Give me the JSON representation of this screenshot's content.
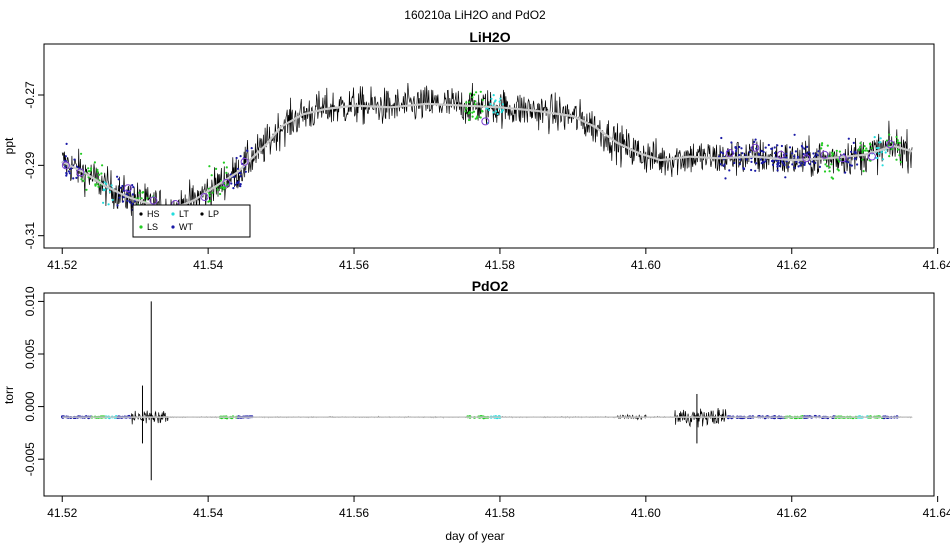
{
  "figure": {
    "title": "160210a   LiH2O and PdO2",
    "xlabel": "day of year"
  },
  "colors": {
    "HS": "#000000",
    "LS": "#22cc22",
    "LT": "#22dddd",
    "WT": "#1a1aa6",
    "LP": "#000000",
    "smooth": "#c8c8c8",
    "marker": "#7b3fd1"
  },
  "chart_data": [
    {
      "type": "line",
      "title": "LiH2O",
      "xlabel": "",
      "ylabel": "ppt",
      "xlim": [
        41.5175,
        41.6395
      ],
      "ylim": [
        -0.3135,
        -0.2555
      ],
      "xticks": [
        41.52,
        41.54,
        41.56,
        41.58,
        41.6,
        41.62,
        41.64
      ],
      "xtick_labels": [
        "41.52",
        "41.54",
        "41.56",
        "41.58",
        "41.60",
        "41.62",
        "41.64"
      ],
      "yticks": [
        -0.31,
        -0.29,
        -0.27
      ],
      "ytick_labels": [
        "-0.31",
        "-0.29",
        "-0.27"
      ],
      "grid": false,
      "legend": {
        "placement": "bottom-left",
        "entries": [
          {
            "label": "HS",
            "color": "#000000"
          },
          {
            "label": "LS",
            "color": "#22cc22"
          },
          {
            "label": "LT",
            "color": "#22dddd"
          },
          {
            "label": "WT",
            "color": "#1a1aa6"
          },
          {
            "label": "LP",
            "color": "#000000"
          }
        ]
      },
      "series": [
        {
          "name": "HS",
          "x": [
            41.52,
            41.523,
            41.526,
            41.529,
            41.532,
            41.535,
            41.538,
            41.541,
            41.544,
            41.546,
            41.548,
            41.55,
            41.553,
            41.556,
            41.56,
            41.565,
            41.57,
            41.575,
            41.58,
            41.585,
            41.59,
            41.593,
            41.596,
            41.599,
            41.602,
            41.606,
            41.61,
            41.615,
            41.62,
            41.625,
            41.63,
            41.634,
            41.6365
          ],
          "values": [
            -0.289,
            -0.292,
            -0.296,
            -0.299,
            -0.301,
            -0.3025,
            -0.3,
            -0.296,
            -0.292,
            -0.288,
            -0.284,
            -0.279,
            -0.2755,
            -0.274,
            -0.273,
            -0.2735,
            -0.2725,
            -0.273,
            -0.2735,
            -0.2745,
            -0.276,
            -0.279,
            -0.2835,
            -0.2865,
            -0.2885,
            -0.2875,
            -0.288,
            -0.2875,
            -0.2885,
            -0.288,
            -0.287,
            -0.2845,
            -0.286
          ],
          "noise": 0.009
        },
        {
          "name": "smoothed",
          "x": [
            41.52,
            41.523,
            41.526,
            41.529,
            41.532,
            41.535,
            41.538,
            41.541,
            41.544,
            41.546,
            41.548,
            41.55,
            41.553,
            41.556,
            41.56,
            41.565,
            41.57,
            41.575,
            41.58,
            41.585,
            41.59,
            41.593,
            41.596,
            41.599,
            41.602,
            41.606,
            41.61,
            41.615,
            41.62,
            41.625,
            41.63,
            41.634,
            41.6365
          ],
          "values": [
            -0.289,
            -0.292,
            -0.296,
            -0.299,
            -0.301,
            -0.3025,
            -0.3,
            -0.296,
            -0.292,
            -0.288,
            -0.284,
            -0.279,
            -0.2755,
            -0.274,
            -0.273,
            -0.2735,
            -0.2725,
            -0.273,
            -0.2735,
            -0.2745,
            -0.276,
            -0.279,
            -0.2835,
            -0.2865,
            -0.2885,
            -0.2875,
            -0.288,
            -0.2875,
            -0.2885,
            -0.288,
            -0.287,
            -0.2845,
            -0.286
          ]
        },
        {
          "name": "markers",
          "x": [
            41.5205,
            41.5225,
            41.529,
            41.5325,
            41.5355,
            41.5395,
            41.5425,
            41.545,
            41.578,
            41.6115,
            41.615,
            41.6185,
            41.622,
            41.6245,
            41.627,
            41.631,
            41.6335
          ],
          "values": [
            -0.29,
            -0.292,
            -0.2965,
            -0.3,
            -0.301,
            -0.299,
            -0.295,
            -0.289,
            -0.2775,
            -0.2865,
            -0.285,
            -0.287,
            -0.288,
            -0.287,
            -0.288,
            -0.2875,
            -0.284
          ]
        }
      ],
      "segments": [
        {
          "label": "WT",
          "x0": 41.52,
          "x1": 41.5225,
          "color": "#1a1aa6"
        },
        {
          "label": "LS",
          "x0": 41.5225,
          "x1": 41.5255,
          "color": "#22cc22"
        },
        {
          "label": "LT",
          "x0": 41.5255,
          "x1": 41.527,
          "color": "#22dddd"
        },
        {
          "label": "WT",
          "x0": 41.527,
          "x1": 41.53,
          "color": "#1a1aa6"
        },
        {
          "label": "LS",
          "x0": 41.53,
          "x1": 41.533,
          "color": "#22cc22"
        },
        {
          "label": "LS",
          "x0": 41.54,
          "x1": 41.543,
          "color": "#22cc22"
        },
        {
          "label": "WT",
          "x0": 41.543,
          "x1": 41.546,
          "color": "#1a1aa6"
        },
        {
          "label": "LS",
          "x0": 41.575,
          "x1": 41.578,
          "color": "#22cc22"
        },
        {
          "label": "LT",
          "x0": 41.578,
          "x1": 41.5805,
          "color": "#22dddd"
        },
        {
          "label": "WT",
          "x0": 41.61,
          "x1": 41.624,
          "color": "#1a1aa6"
        },
        {
          "label": "LS",
          "x0": 41.624,
          "x1": 41.627,
          "color": "#22cc22"
        },
        {
          "label": "WT",
          "x0": 41.627,
          "x1": 41.629,
          "color": "#1a1aa6"
        },
        {
          "label": "LS",
          "x0": 41.629,
          "x1": 41.631,
          "color": "#22cc22"
        },
        {
          "label": "LT",
          "x0": 41.631,
          "x1": 41.633,
          "color": "#22dddd"
        },
        {
          "label": "LS",
          "x0": 41.633,
          "x1": 41.635,
          "color": "#22cc22"
        }
      ]
    },
    {
      "type": "line",
      "title": "PdO2",
      "xlabel": "day of year",
      "ylabel": "torr",
      "xlim": [
        41.5175,
        41.6395
      ],
      "ylim": [
        -0.0085,
        0.0108
      ],
      "xticks": [
        41.52,
        41.54,
        41.56,
        41.58,
        41.6,
        41.62,
        41.64
      ],
      "xtick_labels": [
        "41.52",
        "41.54",
        "41.56",
        "41.58",
        "41.60",
        "41.62",
        "41.64"
      ],
      "yticks": [
        -0.005,
        0.0,
        0.005,
        0.01
      ],
      "ytick_labels": [
        "-0.005",
        "0.000",
        "0.005",
        "0.010"
      ],
      "grid": false,
      "series": [
        {
          "name": "PdO2",
          "x": [
            41.52,
            41.53,
            41.5308,
            41.5315,
            41.5322,
            41.533,
            41.5336,
            41.54,
            41.56,
            41.58,
            41.595,
            41.6,
            41.605,
            41.6075,
            41.61,
            41.612,
            41.62,
            41.63,
            41.6365
          ],
          "values": [
            -0.001,
            -0.001,
            -0.0008,
            -0.0012,
            0.0085,
            -0.005,
            -0.001,
            -0.001,
            -0.001,
            -0.001,
            -0.001,
            -0.001,
            -0.001,
            -0.0012,
            -0.001,
            -0.001,
            -0.001,
            -0.001,
            -0.001
          ],
          "spikes": [
            {
              "x": 41.5322,
              "max": 0.01,
              "min": -0.007
            },
            {
              "x": 41.531,
              "max": 0.002,
              "min": -0.0035
            },
            {
              "x": 41.607,
              "max": 0.0012,
              "min": -0.0035
            }
          ],
          "noise_regions": [
            {
              "x0": 41.5295,
              "x1": 41.5345,
              "amp": 0.0012
            },
            {
              "x0": 41.596,
              "x1": 41.6,
              "amp": 0.0004
            },
            {
              "x0": 41.604,
              "x1": 41.611,
              "amp": 0.0014
            }
          ]
        }
      ],
      "segments": [
        {
          "label": "WT",
          "x0": 41.52,
          "x1": 41.524,
          "color": "#1a1aa6"
        },
        {
          "label": "LS",
          "x0": 41.524,
          "x1": 41.526,
          "color": "#22cc22"
        },
        {
          "label": "LT",
          "x0": 41.526,
          "x1": 41.5275,
          "color": "#22dddd"
        },
        {
          "label": "WT",
          "x0": 41.5275,
          "x1": 41.5295,
          "color": "#1a1aa6"
        },
        {
          "label": "LS",
          "x0": 41.5415,
          "x1": 41.544,
          "color": "#22cc22"
        },
        {
          "label": "WT",
          "x0": 41.544,
          "x1": 41.546,
          "color": "#1a1aa6"
        },
        {
          "label": "LS",
          "x0": 41.5755,
          "x1": 41.5785,
          "color": "#22cc22"
        },
        {
          "label": "LT",
          "x0": 41.5785,
          "x1": 41.5805,
          "color": "#22dddd"
        },
        {
          "label": "WT",
          "x0": 41.611,
          "x1": 41.619,
          "color": "#1a1aa6"
        },
        {
          "label": "LS",
          "x0": 41.619,
          "x1": 41.6215,
          "color": "#22cc22"
        },
        {
          "label": "WT",
          "x0": 41.6215,
          "x1": 41.626,
          "color": "#1a1aa6"
        },
        {
          "label": "LS",
          "x0": 41.626,
          "x1": 41.629,
          "color": "#22cc22"
        },
        {
          "label": "LT",
          "x0": 41.629,
          "x1": 41.6305,
          "color": "#22dddd"
        },
        {
          "label": "LS",
          "x0": 41.6305,
          "x1": 41.6325,
          "color": "#22cc22"
        },
        {
          "label": "WT",
          "x0": 41.6325,
          "x1": 41.6345,
          "color": "#1a1aa6"
        }
      ]
    }
  ]
}
